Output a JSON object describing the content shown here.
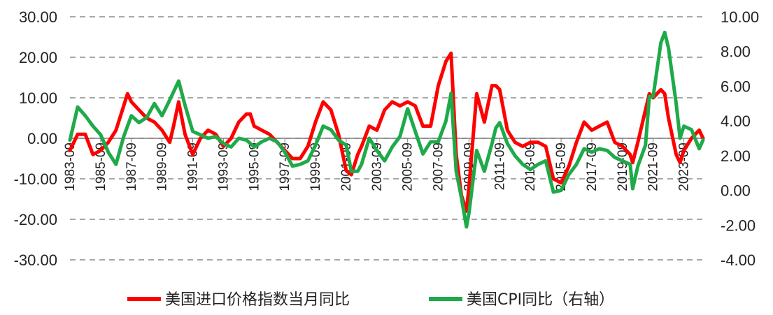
{
  "chart_data": {
    "type": "line",
    "title": "",
    "xlabel": "",
    "ylabel": "",
    "x_start": "1983-09",
    "x_end": "2024-12",
    "x_ticks": [
      "1983-09",
      "1985-09",
      "1987-09",
      "1989-09",
      "1991-09",
      "1993-09",
      "1995-09",
      "1997-09",
      "1999-09",
      "2001-09",
      "2003-09",
      "2005-09",
      "2007-09",
      "2009-09",
      "2011-09",
      "2013-09",
      "2015-09",
      "2017-09",
      "2019-09",
      "2021-09",
      "2023-09"
    ],
    "y_left": {
      "min": -30,
      "max": 30,
      "ticks": [
        "-30.00",
        "-20.00",
        "-10.00",
        "0.00",
        "10.00",
        "20.00",
        "30.00"
      ]
    },
    "y_right": {
      "min": -4,
      "max": 10,
      "ticks": [
        "-4.00",
        "-2.00",
        "0.00",
        "2.00",
        "4.00",
        "6.00",
        "8.00",
        "10.00"
      ]
    },
    "grid": "horizontal-dashed",
    "legend_position": "bottom",
    "series": [
      {
        "name": "美国进口价格指数当月同比",
        "axis": "left",
        "color": "#ff0000",
        "points": [
          [
            "1983-09",
            -3
          ],
          [
            "1984-03",
            1
          ],
          [
            "1984-09",
            1
          ],
          [
            "1985-03",
            -4
          ],
          [
            "1985-09",
            -3
          ],
          [
            "1986-03",
            -1
          ],
          [
            "1986-09",
            2
          ],
          [
            "1987-03",
            8
          ],
          [
            "1987-06",
            11
          ],
          [
            "1987-09",
            9
          ],
          [
            "1988-03",
            7
          ],
          [
            "1988-09",
            5
          ],
          [
            "1989-03",
            4
          ],
          [
            "1989-09",
            2
          ],
          [
            "1990-03",
            -1
          ],
          [
            "1990-06",
            3
          ],
          [
            "1990-10",
            9
          ],
          [
            "1991-03",
            1
          ],
          [
            "1991-09",
            -4
          ],
          [
            "1992-03",
            0
          ],
          [
            "1992-09",
            2
          ],
          [
            "1993-03",
            1
          ],
          [
            "1993-09",
            -2
          ],
          [
            "1994-03",
            0
          ],
          [
            "1994-09",
            4
          ],
          [
            "1995-03",
            6
          ],
          [
            "1995-06",
            6
          ],
          [
            "1995-09",
            3
          ],
          [
            "1996-03",
            2
          ],
          [
            "1996-09",
            1
          ],
          [
            "1997-03",
            -1
          ],
          [
            "1997-09",
            -3
          ],
          [
            "1998-03",
            -5
          ],
          [
            "1998-09",
            -5
          ],
          [
            "1999-03",
            -2
          ],
          [
            "1999-09",
            4
          ],
          [
            "2000-03",
            9
          ],
          [
            "2000-09",
            7
          ],
          [
            "2001-03",
            1
          ],
          [
            "2001-09",
            -8
          ],
          [
            "2002-01",
            -9
          ],
          [
            "2002-06",
            -4
          ],
          [
            "2002-09",
            -2
          ],
          [
            "2003-03",
            3
          ],
          [
            "2003-09",
            2
          ],
          [
            "2004-03",
            7
          ],
          [
            "2004-09",
            9
          ],
          [
            "2005-03",
            8
          ],
          [
            "2005-09",
            9
          ],
          [
            "2006-03",
            8
          ],
          [
            "2006-09",
            3
          ],
          [
            "2007-03",
            3
          ],
          [
            "2007-09",
            13
          ],
          [
            "2008-03",
            19
          ],
          [
            "2008-07",
            21
          ],
          [
            "2008-11",
            -4
          ],
          [
            "2009-03",
            -14
          ],
          [
            "2009-07",
            -18
          ],
          [
            "2009-09",
            -12
          ],
          [
            "2010-03",
            11
          ],
          [
            "2010-09",
            4
          ],
          [
            "2011-03",
            13
          ],
          [
            "2011-06",
            13
          ],
          [
            "2011-09",
            12
          ],
          [
            "2012-03",
            2
          ],
          [
            "2012-09",
            -1
          ],
          [
            "2013-03",
            -2
          ],
          [
            "2013-09",
            -1
          ],
          [
            "2014-03",
            -1
          ],
          [
            "2014-09",
            -2
          ],
          [
            "2015-03",
            -10
          ],
          [
            "2015-09",
            -11
          ],
          [
            "2016-03",
            -7
          ],
          [
            "2016-09",
            -1
          ],
          [
            "2017-03",
            4
          ],
          [
            "2017-09",
            2
          ],
          [
            "2018-03",
            3
          ],
          [
            "2018-09",
            4
          ],
          [
            "2019-03",
            -1
          ],
          [
            "2019-09",
            -2
          ],
          [
            "2020-03",
            -4
          ],
          [
            "2020-05",
            -6
          ],
          [
            "2020-09",
            -1
          ],
          [
            "2021-03",
            7
          ],
          [
            "2021-06",
            11
          ],
          [
            "2021-09",
            10
          ],
          [
            "2022-03",
            12
          ],
          [
            "2022-06",
            11
          ],
          [
            "2022-09",
            5
          ],
          [
            "2023-03",
            -4
          ],
          [
            "2023-06",
            -6
          ],
          [
            "2023-09",
            -3
          ],
          [
            "2024-03",
            0
          ],
          [
            "2024-09",
            2
          ],
          [
            "2024-12",
            0
          ]
        ]
      },
      {
        "name": "美国CPI同比（右轴）",
        "axis": "right",
        "color": "#1faa4a",
        "points": [
          [
            "1983-09",
            2.9
          ],
          [
            "1984-03",
            4.8
          ],
          [
            "1984-09",
            4.3
          ],
          [
            "1985-03",
            3.7
          ],
          [
            "1985-09",
            3.2
          ],
          [
            "1986-03",
            2.2
          ],
          [
            "1986-09",
            1.5
          ],
          [
            "1987-03",
            3.1
          ],
          [
            "1987-09",
            4.3
          ],
          [
            "1988-03",
            3.9
          ],
          [
            "1988-09",
            4.2
          ],
          [
            "1989-03",
            5.0
          ],
          [
            "1989-09",
            4.3
          ],
          [
            "1990-03",
            5.2
          ],
          [
            "1990-10",
            6.3
          ],
          [
            "1991-03",
            4.9
          ],
          [
            "1991-09",
            3.4
          ],
          [
            "1992-03",
            3.2
          ],
          [
            "1992-09",
            3.0
          ],
          [
            "1993-03",
            3.1
          ],
          [
            "1993-09",
            2.7
          ],
          [
            "1994-03",
            2.5
          ],
          [
            "1994-09",
            3.0
          ],
          [
            "1995-03",
            2.9
          ],
          [
            "1995-09",
            2.5
          ],
          [
            "1996-03",
            2.8
          ],
          [
            "1996-09",
            3.0
          ],
          [
            "1997-03",
            2.8
          ],
          [
            "1997-09",
            2.2
          ],
          [
            "1998-03",
            1.4
          ],
          [
            "1998-09",
            1.5
          ],
          [
            "1999-03",
            1.7
          ],
          [
            "1999-09",
            2.6
          ],
          [
            "2000-03",
            3.7
          ],
          [
            "2000-09",
            3.5
          ],
          [
            "2001-03",
            2.9
          ],
          [
            "2001-09",
            2.6
          ],
          [
            "2002-01",
            1.1
          ],
          [
            "2002-06",
            1.1
          ],
          [
            "2002-09",
            1.5
          ],
          [
            "2003-03",
            3.0
          ],
          [
            "2003-09",
            2.3
          ],
          [
            "2004-03",
            1.7
          ],
          [
            "2004-09",
            2.5
          ],
          [
            "2005-03",
            3.1
          ],
          [
            "2005-09",
            4.7
          ],
          [
            "2006-03",
            3.4
          ],
          [
            "2006-09",
            2.1
          ],
          [
            "2007-03",
            2.8
          ],
          [
            "2007-09",
            2.8
          ],
          [
            "2008-03",
            4.0
          ],
          [
            "2008-07",
            5.6
          ],
          [
            "2008-11",
            1.1
          ],
          [
            "2009-03",
            -0.4
          ],
          [
            "2009-07",
            -2.1
          ],
          [
            "2009-09",
            -1.3
          ],
          [
            "2010-03",
            2.3
          ],
          [
            "2010-09",
            1.1
          ],
          [
            "2011-03",
            2.7
          ],
          [
            "2011-06",
            3.6
          ],
          [
            "2011-09",
            3.9
          ],
          [
            "2012-03",
            2.7
          ],
          [
            "2012-09",
            2.0
          ],
          [
            "2013-03",
            1.5
          ],
          [
            "2013-09",
            1.2
          ],
          [
            "2014-03",
            1.5
          ],
          [
            "2014-09",
            1.7
          ],
          [
            "2015-03",
            -0.1
          ],
          [
            "2015-09",
            0.0
          ],
          [
            "2016-03",
            0.9
          ],
          [
            "2016-09",
            1.5
          ],
          [
            "2017-03",
            2.4
          ],
          [
            "2017-09",
            2.2
          ],
          [
            "2018-03",
            2.4
          ],
          [
            "2018-09",
            2.3
          ],
          [
            "2019-03",
            1.9
          ],
          [
            "2019-09",
            1.7
          ],
          [
            "2020-03",
            1.5
          ],
          [
            "2020-05",
            0.1
          ],
          [
            "2020-09",
            1.4
          ],
          [
            "2021-03",
            2.6
          ],
          [
            "2021-06",
            5.4
          ],
          [
            "2021-09",
            5.4
          ],
          [
            "2022-03",
            8.5
          ],
          [
            "2022-06",
            9.1
          ],
          [
            "2022-09",
            8.2
          ],
          [
            "2023-03",
            5.0
          ],
          [
            "2023-06",
            3.0
          ],
          [
            "2023-09",
            3.7
          ],
          [
            "2024-03",
            3.5
          ],
          [
            "2024-09",
            2.4
          ],
          [
            "2024-12",
            2.9
          ]
        ]
      }
    ]
  }
}
